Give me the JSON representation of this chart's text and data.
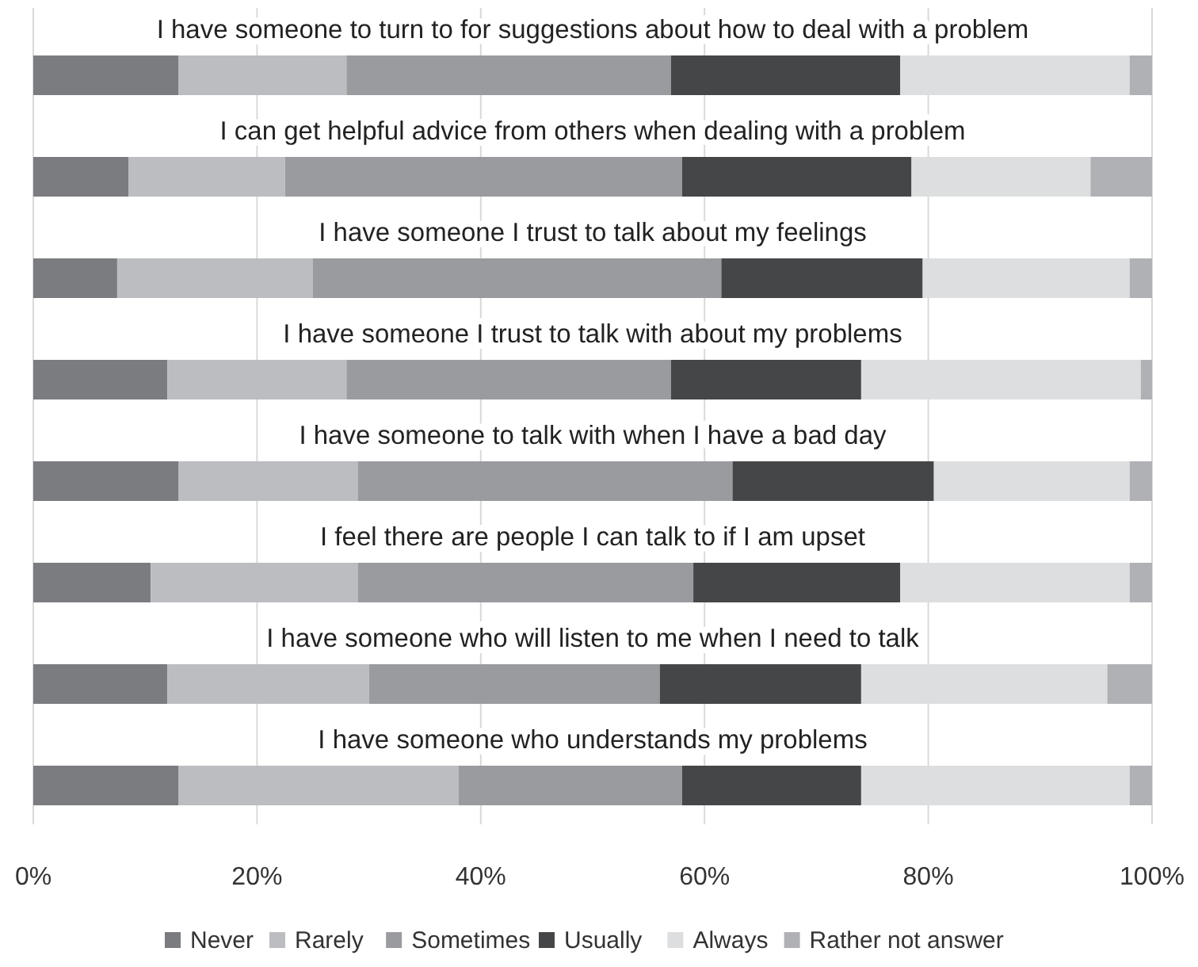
{
  "chart_data": {
    "type": "bar",
    "orientation": "horizontal",
    "stacked": true,
    "categories": [
      "I have someone to turn to for suggestions about how to deal with a problem",
      "I can get helpful advice from others when dealing with a problem",
      "I have someone I trust to talk about my feelings",
      "I have someone I trust to talk with about my problems",
      "I have someone to talk with when I have a bad day",
      "I feel there are people I can talk to if I am upset",
      "I have someone who will listen to me when I need to talk",
      "I have someone who understands my problems"
    ],
    "series": [
      {
        "name": "Never",
        "color": "#7b7c80",
        "values": [
          13,
          8.5,
          7.5,
          12,
          13,
          10.5,
          12,
          13
        ]
      },
      {
        "name": "Rarely",
        "color": "#bcbdc0",
        "values": [
          15,
          14,
          17.5,
          16,
          16,
          18.5,
          18,
          25
        ]
      },
      {
        "name": "Sometimes",
        "color": "#9a9b9f",
        "values": [
          29,
          35.5,
          36.5,
          29,
          33.5,
          30,
          26,
          20
        ]
      },
      {
        "name": "Usually",
        "color": "#454648",
        "values": [
          20.5,
          20.5,
          18,
          17,
          18,
          18.5,
          18,
          16
        ]
      },
      {
        "name": "Always",
        "color": "#dddedf",
        "values": [
          20.5,
          16,
          18.5,
          25,
          17.5,
          20.5,
          22,
          24
        ]
      },
      {
        "name": "Rather not answer",
        "color": "#b0b1b4",
        "values": [
          2,
          5.5,
          2,
          1,
          2,
          2,
          4,
          2
        ]
      }
    ],
    "xlim": [
      0,
      100
    ],
    "xticks": [
      {
        "value": 0,
        "label": "0%"
      },
      {
        "value": 20,
        "label": "20%"
      },
      {
        "value": 40,
        "label": "40%"
      },
      {
        "value": 60,
        "label": "60%"
      },
      {
        "value": 80,
        "label": "80%"
      },
      {
        "value": 100,
        "label": "100%"
      }
    ],
    "grid": "x",
    "legend": "bottom"
  }
}
